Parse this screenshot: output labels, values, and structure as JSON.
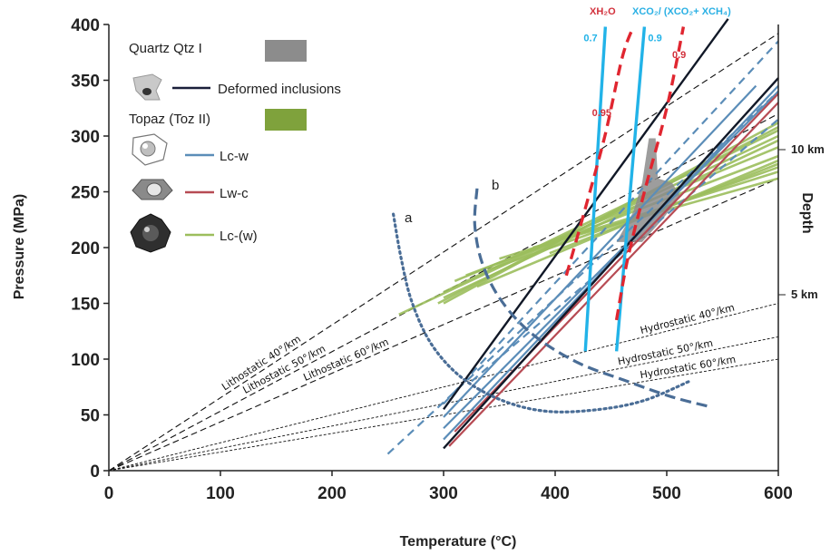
{
  "chart_data": {
    "type": "line",
    "xlabel": "Temperature (°C)",
    "ylabel": "Pressure (MPa)",
    "xlim": [
      0,
      600
    ],
    "ylim": [
      0,
      400
    ],
    "xticks": [
      "0",
      "100",
      "200",
      "300",
      "400",
      "500",
      "600"
    ],
    "yticks": [
      "0",
      "50",
      "100",
      "150",
      "200",
      "250",
      "300",
      "350",
      "400"
    ],
    "right_axis": {
      "label": "Depth",
      "marks": [
        {
          "label": "10 km",
          "y": 260
        },
        {
          "label": "5 km",
          "y": 157
        }
      ]
    },
    "legend": {
      "placement": "top-left",
      "items": [
        {
          "label": "Quartz Qtz I",
          "swatch": "box",
          "color": "#8c8c8c"
        },
        {
          "label": "Deformed inclusions",
          "swatch": "line",
          "color": "#1a1f3a"
        },
        {
          "label": "Topaz (Toz II)",
          "swatch": "box",
          "color": "#7fa23c"
        },
        {
          "label": "Lc-w",
          "swatch": "line",
          "color": "#5b8db8"
        },
        {
          "label": "Lw-c",
          "swatch": "line",
          "color": "#b74b54"
        },
        {
          "label": "Lc-(w)",
          "swatch": "line",
          "color": "#9cbe5d"
        }
      ]
    },
    "gradients": [
      {
        "label": "Lithostatic 40°/km",
        "points": [
          [
            0,
            0
          ],
          [
            600,
            392
          ]
        ]
      },
      {
        "label": "Lithostatic 50°/km",
        "points": [
          [
            0,
            0
          ],
          [
            600,
            320
          ]
        ]
      },
      {
        "label": "Lithostatic 60°/km",
        "points": [
          [
            0,
            0
          ],
          [
            600,
            262
          ]
        ]
      },
      {
        "label": "Hydrostatic 40°/km",
        "points": [
          [
            0,
            0
          ],
          [
            600,
            150
          ]
        ]
      },
      {
        "label": "Hydrostatic 50°/km",
        "points": [
          [
            0,
            0
          ],
          [
            600,
            120
          ]
        ]
      },
      {
        "label": "Hydrostatic 60°/km",
        "points": [
          [
            0,
            0
          ],
          [
            600,
            100
          ]
        ]
      }
    ],
    "curve_labels": [
      {
        "label": "a",
        "at": [
          265,
          225
        ]
      },
      {
        "label": "b",
        "at": [
          350,
          257
        ]
      }
    ],
    "curves": {
      "a": [
        [
          255,
          230
        ],
        [
          262,
          190
        ],
        [
          272,
          150
        ],
        [
          290,
          112
        ],
        [
          318,
          82
        ],
        [
          355,
          62
        ],
        [
          395,
          53
        ],
        [
          440,
          55
        ],
        [
          480,
          63
        ],
        [
          520,
          80
        ]
      ],
      "b": [
        [
          330,
          253
        ],
        [
          328,
          220
        ],
        [
          335,
          185
        ],
        [
          352,
          152
        ],
        [
          380,
          122
        ],
        [
          420,
          97
        ],
        [
          465,
          80
        ],
        [
          505,
          66
        ],
        [
          540,
          57
        ]
      ]
    },
    "isochores": {
      "deformed": [
        [
          [
            300,
            20
          ],
          [
            600,
            352
          ]
        ],
        [
          [
            300,
            55
          ],
          [
            555,
            405
          ]
        ]
      ],
      "lc_w": [
        [
          [
            300,
            28
          ],
          [
            600,
            345
          ]
        ],
        [
          [
            300,
            38
          ],
          [
            600,
            340
          ]
        ],
        [
          [
            300,
            48
          ],
          [
            580,
            345
          ]
        ],
        [
          [
            300,
            60
          ],
          [
            600,
            385
          ]
        ],
        [
          [
            250,
            15
          ],
          [
            600,
            340
          ]
        ],
        [
          [
            325,
            80
          ],
          [
            600,
            315
          ]
        ]
      ],
      "lw_c": [
        [
          [
            305,
            22
          ],
          [
            600,
            330
          ]
        ],
        [
          [
            310,
            35
          ],
          [
            600,
            338
          ]
        ]
      ],
      "topaz": [
        [
          [
            260,
            140
          ],
          [
            600,
            300
          ]
        ],
        [
          [
            300,
            150
          ],
          [
            600,
            312
          ]
        ],
        [
          [
            300,
            160
          ],
          [
            600,
            305
          ]
        ],
        [
          [
            300,
            155
          ],
          [
            600,
            296
          ]
        ],
        [
          [
            310,
            170
          ],
          [
            600,
            290
          ]
        ],
        [
          [
            320,
            175
          ],
          [
            600,
            282
          ]
        ],
        [
          [
            330,
            165
          ],
          [
            600,
            278
          ]
        ],
        [
          [
            340,
            180
          ],
          [
            600,
            272
          ]
        ],
        [
          [
            350,
            190
          ],
          [
            600,
            268
          ]
        ],
        [
          [
            380,
            200
          ],
          [
            600,
            262
          ]
        ],
        [
          [
            395,
            195
          ],
          [
            600,
            275
          ]
        ],
        [
          [
            295,
            150
          ],
          [
            600,
            308
          ]
        ]
      ]
    },
    "quartz_area": [
      [
        455,
        205
      ],
      [
        470,
        232
      ],
      [
        478,
        258
      ],
      [
        484,
        298
      ],
      [
        490,
        298
      ],
      [
        492,
        262
      ],
      [
        505,
        258
      ],
      [
        512,
        246
      ],
      [
        496,
        225
      ],
      [
        478,
        205
      ]
    ],
    "composition": {
      "title_h2o": "XH₂O",
      "title_co2": "XCO₂/ (XCO₂+ XCH₄)",
      "h2o_lines": [
        {
          "label": "0.95",
          "points": [
            [
              410,
              175
            ],
            [
              427,
              235
            ],
            [
              445,
              302
            ],
            [
              460,
              370
            ],
            [
              470,
              398
            ]
          ]
        },
        {
          "label": "0.9",
          "points": [
            [
              455,
              135
            ],
            [
              465,
              190
            ],
            [
              480,
              250
            ],
            [
              500,
              325
            ],
            [
              515,
              398
            ]
          ]
        }
      ],
      "co2_lines": [
        {
          "label": "0.7",
          "points": [
            [
              427,
              107
            ],
            [
              445,
              398
            ]
          ]
        },
        {
          "label": "0.9",
          "points": [
            [
              455,
              107
            ],
            [
              480,
              398
            ]
          ]
        }
      ]
    },
    "grid": false
  }
}
